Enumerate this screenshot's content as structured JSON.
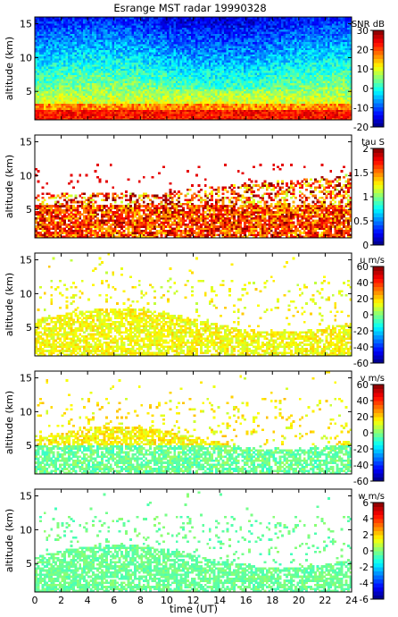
{
  "chart_data": {
    "type": "heatmap",
    "title": "Esrange MST radar 19990328",
    "xlabel": "time (UT)",
    "xlim": [
      0,
      24
    ],
    "xticks": [
      0,
      2,
      4,
      6,
      8,
      10,
      12,
      14,
      16,
      18,
      20,
      22,
      24
    ],
    "colormap": "jet",
    "panels": [
      {
        "ylabel": "altitude (km)",
        "ylim": [
          0.8,
          16
        ],
        "yticks": [
          5,
          10,
          15
        ],
        "colorbar_label": "SNR dB",
        "clim": [
          -20,
          30
        ],
        "cticks": [
          -20,
          -10,
          0,
          10,
          20,
          30
        ]
      },
      {
        "ylabel": "altitude (km)",
        "ylim": [
          0.8,
          16
        ],
        "yticks": [
          5,
          10,
          15
        ],
        "colorbar_label": "tau S",
        "clim": [
          0,
          2
        ],
        "cticks": [
          0,
          0.5,
          1,
          1.5,
          2
        ]
      },
      {
        "ylabel": "altitude (km)",
        "ylim": [
          0.8,
          16
        ],
        "yticks": [
          5,
          10,
          15
        ],
        "colorbar_label": "u m/s",
        "clim": [
          -60,
          60
        ],
        "cticks": [
          -60,
          -40,
          -20,
          0,
          20,
          40,
          60
        ]
      },
      {
        "ylabel": "altitude (km)",
        "ylim": [
          0.8,
          16
        ],
        "yticks": [
          5,
          10,
          15
        ],
        "colorbar_label": "v m/s",
        "clim": [
          -60,
          60
        ],
        "cticks": [
          -60,
          -40,
          -20,
          0,
          20,
          40,
          60
        ]
      },
      {
        "ylabel": "altitude (km)",
        "ylim": [
          0.8,
          16
        ],
        "yticks": [
          5,
          10,
          15
        ],
        "colorbar_label": "w m/s",
        "clim": [
          -6,
          6
        ],
        "cticks": [
          -6,
          -4,
          -2,
          0,
          2,
          4,
          6
        ]
      }
    ]
  }
}
